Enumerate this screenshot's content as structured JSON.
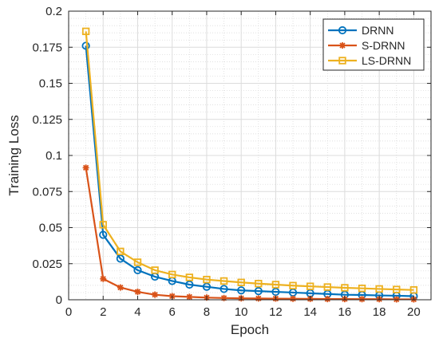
{
  "chart_data": {
    "type": "line",
    "xlabel": "Epoch",
    "ylabel": "Training Loss",
    "xlim": [
      0,
      21
    ],
    "ylim": [
      0,
      0.2
    ],
    "xticks": [
      "0",
      "2",
      "4",
      "6",
      "8",
      "10",
      "12",
      "14",
      "16",
      "18",
      "20"
    ],
    "yticks": [
      "0",
      "0.025",
      "0.05",
      "0.075",
      "0.1",
      "0.125",
      "0.15",
      "0.175",
      "0.2"
    ],
    "grid": true,
    "minor_grid": true,
    "legend_position": "top-right",
    "x": [
      1,
      2,
      3,
      4,
      5,
      6,
      7,
      8,
      9,
      10,
      11,
      12,
      13,
      14,
      15,
      16,
      17,
      18,
      19,
      20
    ],
    "series": [
      {
        "name": "DRNN",
        "color": "#0072BD",
        "marker": "circle",
        "values": [
          0.176,
          0.045,
          0.0285,
          0.0205,
          0.016,
          0.013,
          0.0105,
          0.009,
          0.0075,
          0.0065,
          0.006,
          0.0055,
          0.005,
          0.0045,
          0.004,
          0.0035,
          0.0033,
          0.003,
          0.0028,
          0.0025
        ]
      },
      {
        "name": "S-DRNN",
        "color": "#D95319",
        "marker": "asterisk",
        "values": [
          0.0915,
          0.0145,
          0.0085,
          0.0055,
          0.0035,
          0.0025,
          0.002,
          0.0015,
          0.0012,
          0.001,
          0.0009,
          0.0008,
          0.0007,
          0.0006,
          0.0005,
          0.0005,
          0.0004,
          0.0004,
          0.0003,
          0.0003
        ]
      },
      {
        "name": "LS-DRNN",
        "color": "#EDB120",
        "marker": "square",
        "values": [
          0.186,
          0.052,
          0.0335,
          0.026,
          0.0205,
          0.0175,
          0.0155,
          0.014,
          0.013,
          0.012,
          0.0112,
          0.0105,
          0.0098,
          0.0093,
          0.0088,
          0.0083,
          0.0079,
          0.0075,
          0.0071,
          0.0068
        ]
      }
    ]
  }
}
